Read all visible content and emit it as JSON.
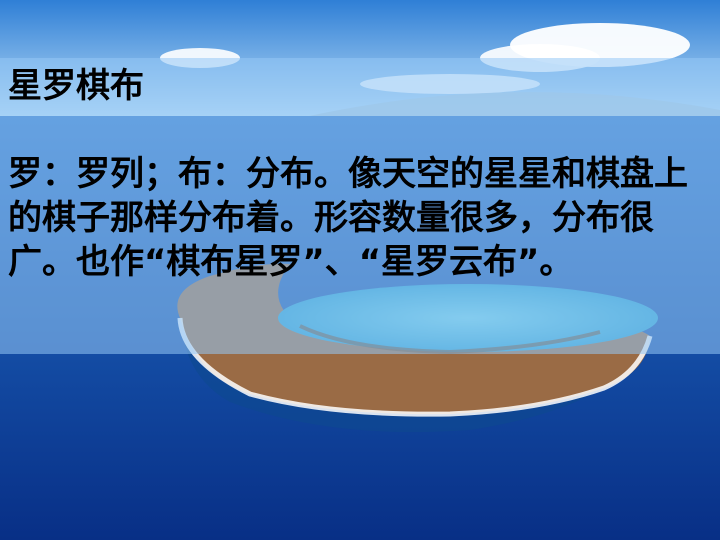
{
  "slide": {
    "title": "星罗棋布",
    "body": "罗：罗列；布：分布。像天空的星星和棋盘上的棋子那样分布着。形容数量很多，分布很广。也作“棋布星罗”、“星罗云布”。"
  },
  "background": {
    "scene": "aerial-ocean-crescent-island",
    "colors": {
      "sky_top": "#2f7fd6",
      "sky_bottom": "#bfe0f7",
      "ocean_light": "#2a72c8",
      "ocean_dark": "#082f86",
      "lagoon": "#3fb3d8",
      "island": "#9a6b45"
    }
  },
  "overlay": {
    "color": "#96c8f5"
  }
}
